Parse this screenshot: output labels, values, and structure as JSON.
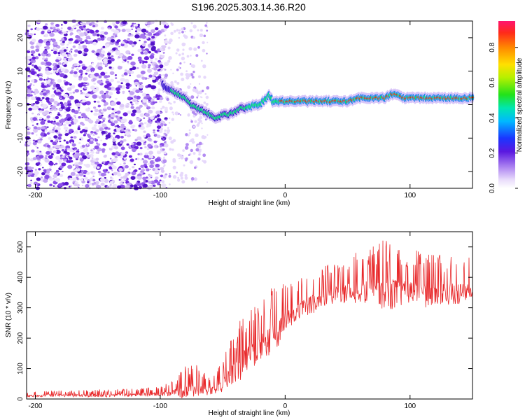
{
  "title": "S196.2025.303.14.36.R20",
  "colors": {
    "snr_line": "#e8282a",
    "ridge_core": "#e8241e",
    "ridge_mid": "#00e27a",
    "ridge_edge": "#1f7cf2",
    "noise": "#6a22dd"
  },
  "chart_data": [
    {
      "type": "heatmap",
      "xlabel": "Height of straight line (km)",
      "ylabel": "Frequency (Hz)",
      "xlim": [
        -207,
        150
      ],
      "ylim": [
        -25,
        25
      ],
      "x_ticks": [
        -200,
        -100,
        0,
        100
      ],
      "x_tick_labels": [
        "-200",
        "-100",
        "0",
        "100"
      ],
      "y_ticks": [
        20,
        10,
        0,
        -10,
        -20
      ],
      "y_tick_labels": [
        "20",
        "10",
        "0",
        "-10",
        "-20"
      ],
      "grid": false,
      "dominant_frequency_ridge": {
        "x": [
          -98,
          -95,
          -90,
          -85,
          -80,
          -75,
          -70,
          -65,
          -60,
          -55,
          -50,
          -45,
          -40,
          -35,
          -30,
          -25,
          -20,
          -15,
          -13,
          -10,
          -5,
          0,
          5,
          10,
          20,
          30,
          40,
          50,
          60,
          70,
          80,
          85,
          90,
          95,
          100,
          110,
          120,
          130,
          140,
          150
        ],
        "freq_hz": [
          6,
          5,
          4,
          3,
          2,
          0,
          -1,
          -2,
          -3,
          -4,
          -3,
          -3,
          -2,
          -1,
          -1,
          0,
          0,
          2,
          3,
          1,
          1,
          1,
          1,
          1,
          1,
          1,
          1,
          1,
          2,
          2,
          2,
          3,
          3,
          2,
          2,
          2,
          2,
          2,
          2,
          2
        ]
      },
      "colorbar": {
        "label": "Normalized spectral amplitude",
        "range": [
          0,
          0.95
        ],
        "ticks": [
          0.0,
          0.2,
          0.4,
          0.6,
          0.8
        ],
        "tick_labels": [
          "0.0",
          "0.2",
          "0.4",
          "0.6",
          "0.8"
        ]
      }
    },
    {
      "type": "line",
      "xlabel": "Height of straight line (km)",
      "ylabel": "SNR (10 * v/v)",
      "xlim": [
        -207,
        150
      ],
      "ylim": [
        0,
        550
      ],
      "x_ticks": [
        -200,
        -100,
        0,
        100
      ],
      "x_tick_labels": [
        "-200",
        "-100",
        "0",
        "100"
      ],
      "y_ticks": [
        0,
        100,
        200,
        300,
        400,
        500
      ],
      "y_tick_labels": [
        "0",
        "100",
        "200",
        "300",
        "400",
        "500"
      ],
      "grid": false,
      "series": [
        {
          "name": "SNR",
          "x": [
            -207,
            -180,
            -150,
            -120,
            -100,
            -90,
            -80,
            -75,
            -70,
            -65,
            -60,
            -55,
            -50,
            -45,
            -40,
            -35,
            -30,
            -25,
            -20,
            -15,
            -10,
            -5,
            0,
            5,
            10,
            15,
            20,
            25,
            30,
            35,
            40,
            45,
            50,
            60,
            70,
            80,
            90,
            100,
            110,
            120,
            130,
            140,
            150
          ],
          "baseline": [
            10,
            12,
            12,
            14,
            15,
            18,
            22,
            25,
            30,
            30,
            25,
            35,
            45,
            70,
            90,
            110,
            140,
            150,
            160,
            180,
            200,
            220,
            250,
            270,
            280,
            295,
            310,
            320,
            330,
            335,
            340,
            345,
            350,
            350,
            350,
            345,
            345,
            340,
            340,
            345,
            345,
            345,
            350
          ],
          "peak": [
            22,
            30,
            32,
            35,
            40,
            60,
            110,
            120,
            110,
            95,
            70,
            90,
            130,
            180,
            220,
            280,
            290,
            300,
            330,
            360,
            375,
            380,
            390,
            395,
            400,
            410,
            430,
            440,
            445,
            450,
            460,
            470,
            480,
            485,
            500,
            540,
            520,
            500,
            495,
            480,
            475,
            470,
            475
          ]
        }
      ]
    }
  ]
}
